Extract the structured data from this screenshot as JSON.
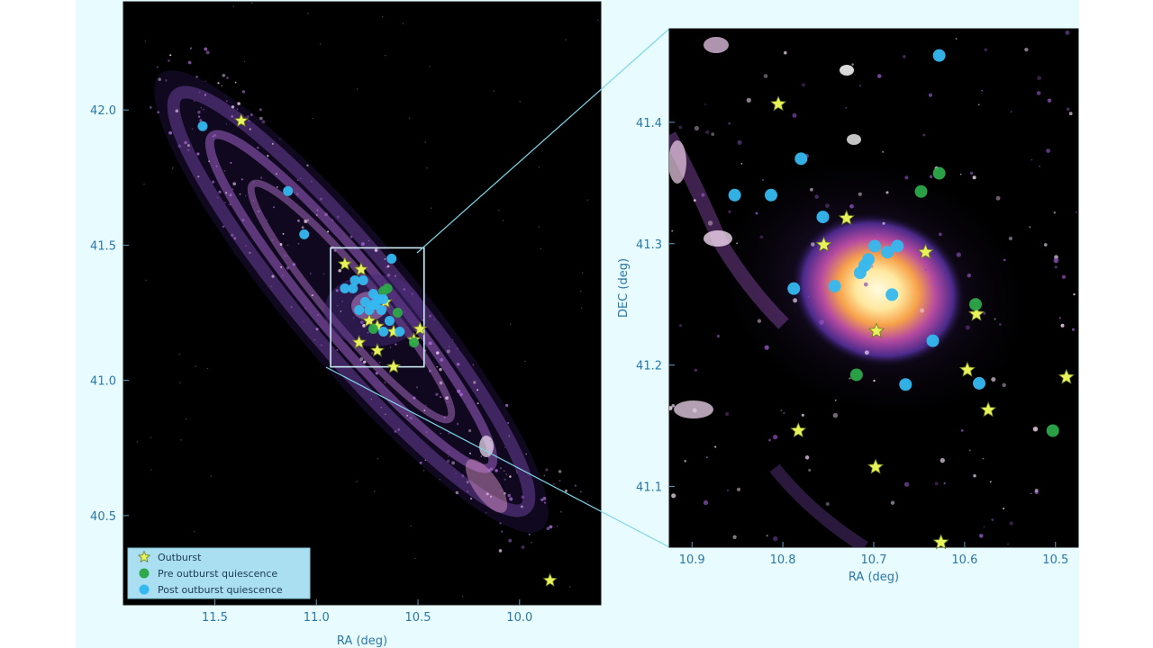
{
  "chart_data": [
    {
      "type": "scatter",
      "xlabel": "RA (deg)",
      "ylabel": "",
      "x_ticks": [
        "11.5",
        "11.0",
        "10.5",
        "10.0"
      ],
      "y_ticks": [
        "40.5",
        "41.0",
        "41.5",
        "42.0"
      ],
      "x_reversed": true,
      "xlim": [
        11.95,
        9.6
      ],
      "ylim": [
        40.17,
        42.4
      ],
      "zoom_box": {
        "x": [
          10.93,
          10.47
        ],
        "y": [
          41.05,
          41.49
        ]
      },
      "legend": {
        "placement": "bottom-left",
        "entries": [
          "Outburst",
          "Pre outburst quiescence",
          "Post outburst quiescence"
        ]
      },
      "series": [
        {
          "name": "Outburst",
          "marker": "star",
          "color": "#e8f25a",
          "points": [
            [
              11.37,
              41.96
            ],
            [
              10.86,
              41.43
            ],
            [
              10.78,
              41.41
            ],
            [
              10.66,
              41.29
            ],
            [
              10.74,
              41.22
            ],
            [
              10.7,
              41.2
            ],
            [
              10.49,
              41.19
            ],
            [
              10.52,
              41.15
            ],
            [
              10.62,
              41.18
            ],
            [
              10.79,
              41.14
            ],
            [
              10.7,
              41.11
            ],
            [
              10.62,
              41.05
            ],
            [
              9.85,
              40.26
            ]
          ]
        },
        {
          "name": "Pre outburst quiescence",
          "marker": "circle",
          "color": "#2da84a",
          "points": [
            [
              10.67,
              41.33
            ],
            [
              10.65,
              41.34
            ],
            [
              10.6,
              41.25
            ],
            [
              10.72,
              41.19
            ],
            [
              10.52,
              41.14
            ]
          ]
        },
        {
          "name": "Post outburst quiescence",
          "marker": "circle",
          "color": "#35b8ef",
          "points": [
            [
              11.56,
              41.94
            ],
            [
              11.14,
              41.7
            ],
            [
              11.06,
              41.54
            ],
            [
              10.63,
              41.45
            ],
            [
              10.81,
              41.37
            ],
            [
              10.77,
              41.37
            ],
            [
              10.86,
              41.34
            ],
            [
              10.82,
              41.34
            ],
            [
              10.72,
              41.32
            ],
            [
              10.76,
              41.29
            ],
            [
              10.7,
              41.3
            ],
            [
              10.69,
              41.3
            ],
            [
              10.67,
              41.3
            ],
            [
              10.72,
              41.28
            ],
            [
              10.71,
              41.28
            ],
            [
              10.79,
              41.26
            ],
            [
              10.68,
              41.26
            ],
            [
              10.74,
              41.26
            ],
            [
              10.64,
              41.22
            ],
            [
              10.67,
              41.18
            ],
            [
              10.59,
              41.18
            ]
          ]
        }
      ]
    },
    {
      "type": "scatter",
      "xlabel": "RA (deg)",
      "ylabel": "DEC (deg)",
      "x_ticks": [
        "10.9",
        "10.8",
        "10.7",
        "10.6",
        "10.5"
      ],
      "y_ticks": [
        "41.1",
        "41.2",
        "41.3",
        "41.4"
      ],
      "x_reversed": true,
      "xlim": [
        10.925,
        10.475
      ],
      "ylim": [
        41.05,
        41.477
      ],
      "series": [
        {
          "name": "Outburst",
          "marker": "star",
          "color": "#e8f25a",
          "points": [
            [
              10.805,
              41.415
            ],
            [
              10.73,
              41.321
            ],
            [
              10.755,
              41.299
            ],
            [
              10.643,
              41.293
            ],
            [
              10.587,
              41.242
            ],
            [
              10.697,
              41.228
            ],
            [
              10.597,
              41.196
            ],
            [
              10.488,
              41.19
            ],
            [
              10.574,
              41.163
            ],
            [
              10.783,
              41.146
            ],
            [
              10.698,
              41.116
            ],
            [
              10.626,
              41.054
            ]
          ]
        },
        {
          "name": "Pre outburst quiescence",
          "marker": "circle",
          "color": "#2da84a",
          "points": [
            [
              10.628,
              41.358
            ],
            [
              10.648,
              41.343
            ],
            [
              10.588,
              41.25
            ],
            [
              10.719,
              41.192
            ],
            [
              10.503,
              41.146
            ]
          ]
        },
        {
          "name": "Post outburst quiescence",
          "marker": "circle",
          "color": "#35b8ef",
          "points": [
            [
              10.628,
              41.455
            ],
            [
              10.78,
              41.37
            ],
            [
              10.853,
              41.34
            ],
            [
              10.813,
              41.34
            ],
            [
              10.756,
              41.322
            ],
            [
              10.699,
              41.298
            ],
            [
              10.674,
              41.298
            ],
            [
              10.685,
              41.293
            ],
            [
              10.706,
              41.287
            ],
            [
              10.71,
              41.282
            ],
            [
              10.715,
              41.276
            ],
            [
              10.743,
              41.265
            ],
            [
              10.788,
              41.263
            ],
            [
              10.68,
              41.258
            ],
            [
              10.635,
              41.22
            ],
            [
              10.665,
              41.184
            ],
            [
              10.584,
              41.185
            ]
          ]
        }
      ]
    }
  ]
}
